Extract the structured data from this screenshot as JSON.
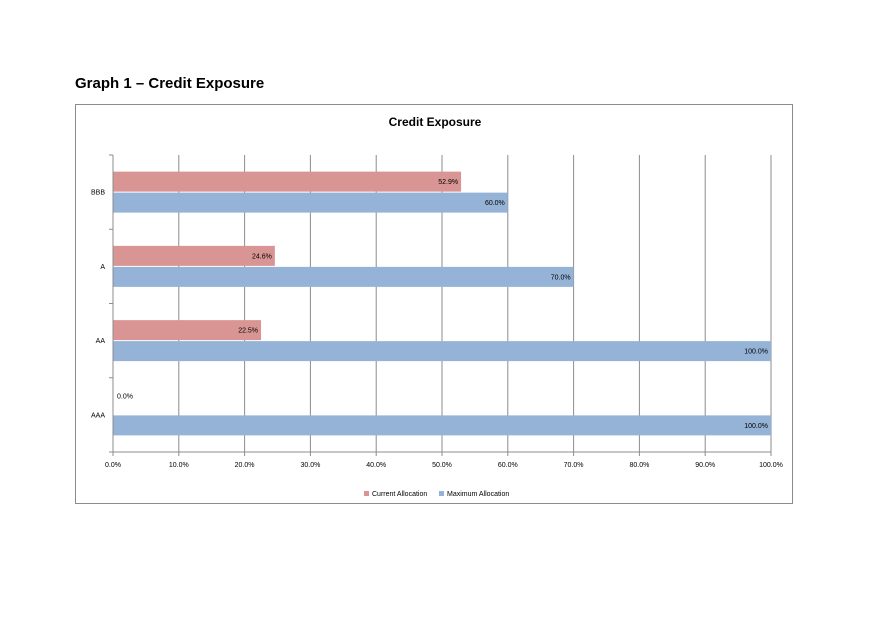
{
  "page": {
    "heading": "Graph 1 – Credit Exposure"
  },
  "chart_data": {
    "type": "bar",
    "orientation": "horizontal",
    "title": "Credit Exposure",
    "categories": [
      "BBB",
      "A",
      "AA",
      "AAA"
    ],
    "series": [
      {
        "name": "Current Allocation",
        "values": [
          52.9,
          24.6,
          22.5,
          0.0
        ],
        "labels": [
          "52.9%",
          "24.6%",
          "22.5%",
          "0.0%"
        ],
        "color": "#d99594"
      },
      {
        "name": "Maximum Allocation",
        "values": [
          60.0,
          70.0,
          100.0,
          100.0
        ],
        "labels": [
          "60.0%",
          "70.0%",
          "100.0%",
          "100.0%"
        ],
        "color": "#95b3d7"
      }
    ],
    "xlim": [
      0,
      100
    ],
    "xticks": [
      0,
      10,
      20,
      30,
      40,
      50,
      60,
      70,
      80,
      90,
      100
    ],
    "xtick_labels": [
      "0.0%",
      "10.0%",
      "20.0%",
      "30.0%",
      "40.0%",
      "50.0%",
      "60.0%",
      "70.0%",
      "80.0%",
      "90.0%",
      "100.0%"
    ],
    "grid": "vertical",
    "legend_position": "bottom"
  }
}
